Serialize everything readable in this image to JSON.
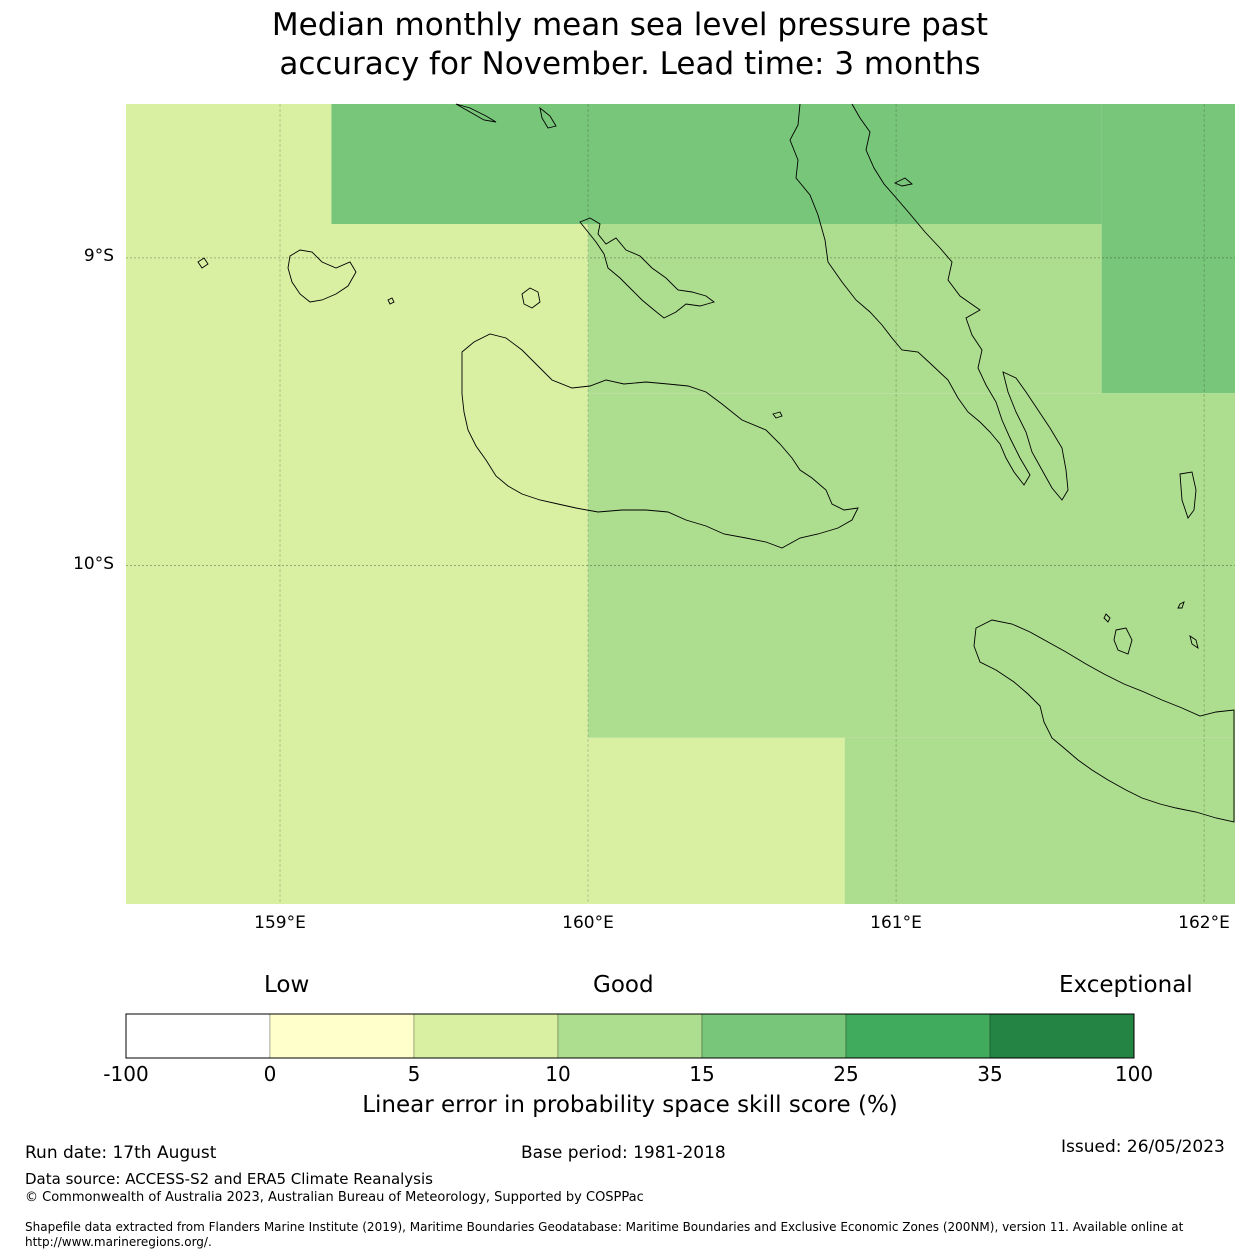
{
  "title": {
    "line1": "Median monthly mean sea level pressure past",
    "line2": "accuracy for November. Lead time: 3 months"
  },
  "map": {
    "lat_labels": [
      "9°S",
      "10°S"
    ],
    "lon_labels": [
      "159°E",
      "160°E",
      "161°E",
      "162°E"
    ],
    "extent": {
      "lon": [
        158.5,
        162.1
      ],
      "lat": [
        -11.1,
        -8.5
      ]
    },
    "cells": [
      {
        "lon": [
          158.5,
          159.167
        ],
        "lat": [
          -8.5,
          -11.1
        ],
        "category": "5-10"
      },
      {
        "lon": [
          159.167,
          160.0
        ],
        "lat": [
          -8.89,
          -11.1
        ],
        "category": "5-10"
      },
      {
        "lon": [
          159.167,
          161.667
        ],
        "lat": [
          -8.5,
          -8.89
        ],
        "category": "15-25"
      },
      {
        "lon": [
          161.667,
          162.1
        ],
        "lat": [
          -8.5,
          -9.44
        ],
        "category": "15-25"
      },
      {
        "lon": [
          160.0,
          161.667
        ],
        "lat": [
          -8.89,
          -9.44
        ],
        "category": "10-15"
      },
      {
        "lon": [
          160.0,
          162.1
        ],
        "lat": [
          -9.44,
          -10.56
        ],
        "category": "10-15"
      },
      {
        "lon": [
          160.0,
          160.833
        ],
        "lat": [
          -10.56,
          -11.1
        ],
        "category": "5-10"
      },
      {
        "lon": [
          160.833,
          162.1
        ],
        "lat": [
          -10.56,
          -11.1
        ],
        "category": "10-15"
      }
    ]
  },
  "colorbar": {
    "words": {
      "low": "Low",
      "good": "Good",
      "exceptional": "Exceptional"
    },
    "ticks": [
      "-100",
      "0",
      "5",
      "10",
      "15",
      "25",
      "35",
      "100"
    ],
    "bins": [
      {
        "range": "-100-0",
        "color": "#ffffff"
      },
      {
        "range": "0-5",
        "color": "#ffffcc"
      },
      {
        "range": "5-10",
        "color": "#d9f0a3"
      },
      {
        "range": "10-15",
        "color": "#addd8e"
      },
      {
        "range": "15-25",
        "color": "#78c679"
      },
      {
        "range": "25-35",
        "color": "#41ab5d"
      },
      {
        "range": "35-100",
        "color": "#238443"
      }
    ],
    "label": "Linear error in probability space skill score (%)"
  },
  "footer": {
    "run_date": "Run date: 17th August",
    "base_period": "Base period: 1981-2018",
    "issued": "Issued: 26/05/2023",
    "data_source": "Data source: ACCESS-S2 and ERA5 Climate Reanalysis",
    "copyright": "© Commonwealth of Australia 2023, Australian Bureau of Meteorology, Supported by COSPPac",
    "shapefile": "Shapefile data extracted from Flanders Marine Institute (2019), Maritime Boundaries Geodatabase: Maritime Boundaries and Exclusive Economic Zones (200NM), version 11. Available online at http://www.marineregions.org/."
  }
}
